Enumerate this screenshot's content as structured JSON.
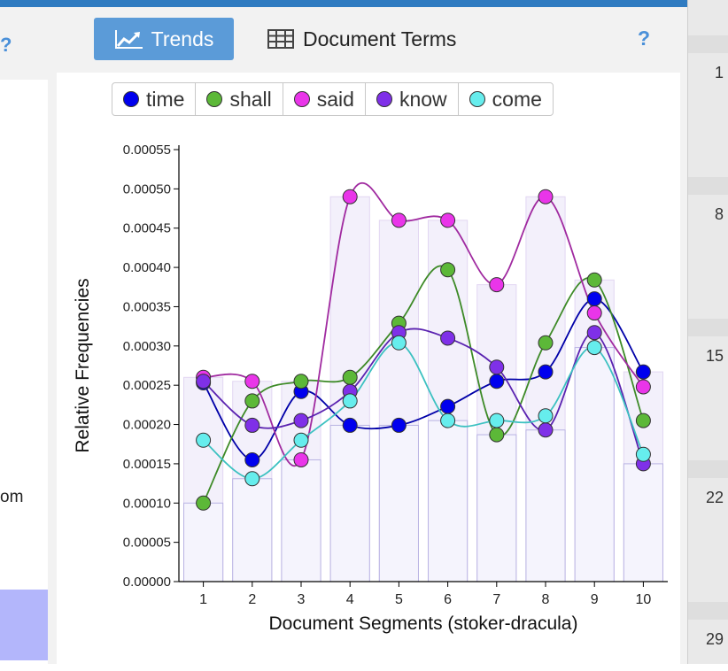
{
  "header": {
    "tabs": [
      {
        "label": "Trends",
        "icon": "line-chart-icon",
        "active": true
      },
      {
        "label": "Document Terms",
        "icon": "table-icon",
        "active": false
      }
    ],
    "help": "?"
  },
  "left_panel": {
    "help": "?",
    "partial_text": "om"
  },
  "gutter": {
    "line_numbers": [
      "1",
      "8",
      "15",
      "22",
      "29"
    ]
  },
  "colors": {
    "accent": "#2f7bc1",
    "time": "#0000ee",
    "shall": "#5cb838",
    "said": "#e935e9",
    "know": "#7f30e8",
    "come": "#66eded"
  },
  "chart_data": {
    "type": "line",
    "xlabel": "Document Segments (stoker-dracula)",
    "ylabel": "Relative Frequencies",
    "x": [
      1,
      2,
      3,
      4,
      5,
      6,
      7,
      8,
      9,
      10
    ],
    "ylim": [
      0,
      0.00055
    ],
    "yticks": [
      "0.00000",
      "0.00005",
      "0.00010",
      "0.00015",
      "0.00020",
      "0.00025",
      "0.00030",
      "0.00035",
      "0.00040",
      "0.00045",
      "0.00050",
      "0.00055"
    ],
    "legend_position": "top",
    "series": [
      {
        "name": "time",
        "values": [
          0.000253,
          0.000155,
          0.000242,
          0.000199,
          0.000199,
          0.000223,
          0.000255,
          0.000267,
          0.00036,
          0.000267
        ]
      },
      {
        "name": "shall",
        "values": [
          0.0001,
          0.00023,
          0.000255,
          0.00026,
          0.000329,
          0.000397,
          0.000187,
          0.000304,
          0.000384,
          0.000205
        ]
      },
      {
        "name": "said",
        "values": [
          0.00026,
          0.000255,
          0.000155,
          0.00049,
          0.00046,
          0.00046,
          0.000378,
          0.00049,
          0.000342,
          0.000248
        ]
      },
      {
        "name": "know",
        "values": [
          0.000255,
          0.000199,
          0.000205,
          0.000242,
          0.000317,
          0.00031,
          0.000273,
          0.000193,
          0.000317,
          0.00015
        ]
      },
      {
        "name": "come",
        "values": [
          0.00018,
          0.000131,
          0.00018,
          0.00023,
          0.000304,
          0.000205,
          0.000205,
          0.000211,
          0.000298,
          0.000162
        ]
      }
    ]
  }
}
